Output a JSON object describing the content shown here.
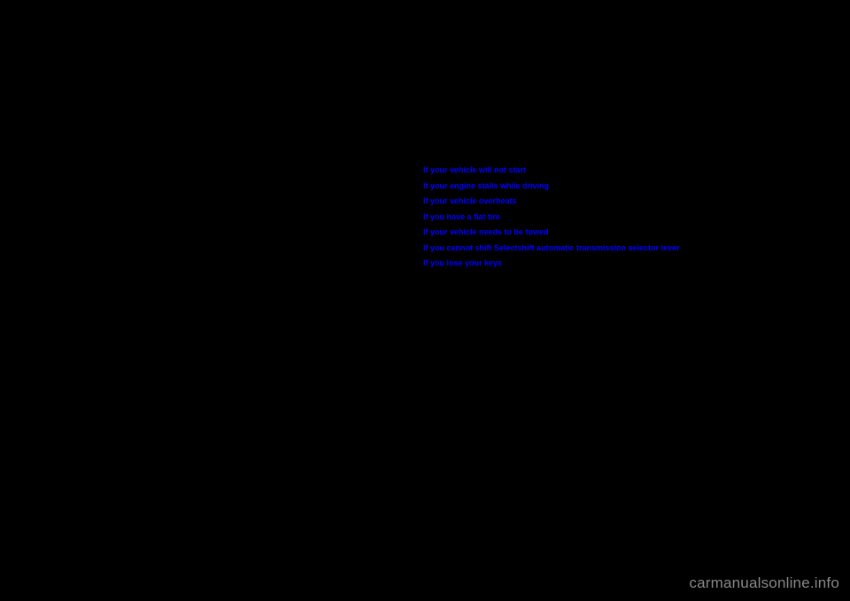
{
  "links": [
    {
      "text": "If your vehicle will not start"
    },
    {
      "text": "If your engine stalls while driving"
    },
    {
      "text": "If your vehicle overheats"
    },
    {
      "text": "If you have a flat tire"
    },
    {
      "text": "If your vehicle needs to be towed"
    },
    {
      "text": "If you cannot shift Selectshift automatic transmission selector lever"
    },
    {
      "text": "If you lose your keys"
    }
  ],
  "colors": {
    "background": "#000000",
    "link_color": "#0000ff",
    "watermark_color": "#888888"
  },
  "typography": {
    "link_fontsize": 9,
    "link_fontweight": "bold",
    "watermark_fontsize": 17
  },
  "watermark": "carmanualsonline.info"
}
